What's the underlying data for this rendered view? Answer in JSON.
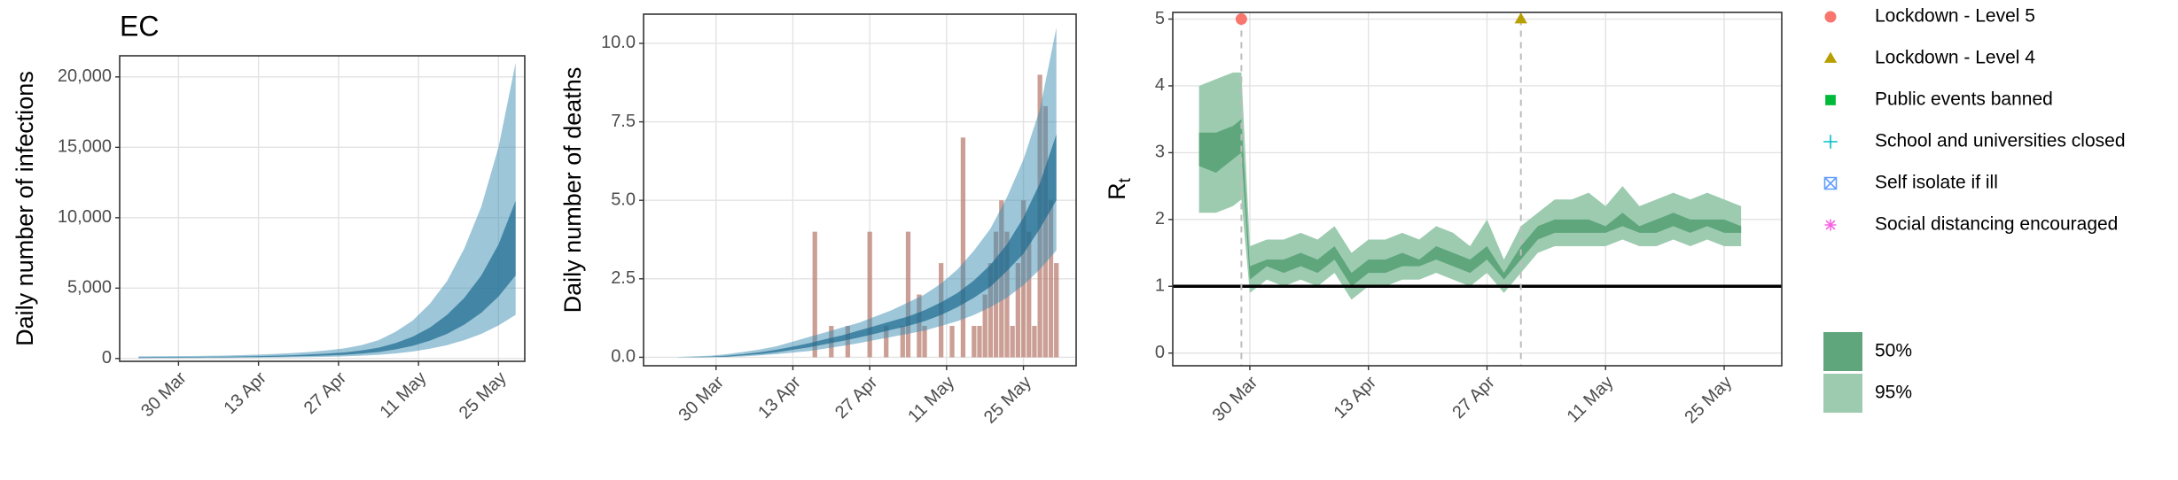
{
  "chart_data": [
    {
      "type": "area",
      "title": "EC",
      "y_label": "Daily number of infections",
      "xlim": [
        79.7,
        150.6
      ],
      "xticks": [
        {
          "value": 90,
          "label": "30 Mar"
        },
        {
          "value": 104,
          "label": "13 Apr"
        },
        {
          "value": 118,
          "label": "27 Apr"
        },
        {
          "value": 132,
          "label": "11 May"
        },
        {
          "value": 146,
          "label": "25 May"
        }
      ],
      "ylim": [
        -200,
        21500
      ],
      "yticks": [
        0,
        {
          "value": 5000,
          "label": "5,000"
        },
        {
          "value": 10000,
          "label": "10,000"
        },
        {
          "value": 15000,
          "label": "15,000"
        },
        {
          "value": 20000,
          "label": "20,000"
        }
      ],
      "grid": true,
      "x": [
        83,
        86,
        89,
        92,
        95,
        98,
        101,
        104,
        107,
        110,
        113,
        116,
        119,
        122,
        125,
        128,
        131,
        134,
        137,
        140,
        143,
        146,
        149
      ],
      "series": [
        {
          "color": "#1d6a8e",
          "opacity": 0.7,
          "lower": [
            45,
            55,
            60,
            70,
            80,
            85,
            95,
            110,
            125,
            150,
            180,
            215,
            260,
            350,
            460,
            650,
            900,
            1270,
            1750,
            2400,
            3250,
            4400,
            5900
          ],
          "upper": [
            80,
            90,
            100,
            110,
            120,
            130,
            145,
            170,
            200,
            235,
            285,
            350,
            430,
            570,
            770,
            1100,
            1550,
            2200,
            3100,
            4300,
            5900,
            8100,
            11200
          ]
        },
        {
          "color": "#3b8db3",
          "opacity": 0.5,
          "lower": [
            20,
            25,
            30,
            35,
            40,
            45,
            50,
            60,
            70,
            85,
            100,
            125,
            150,
            200,
            260,
            360,
            500,
            700,
            950,
            1300,
            1750,
            2350,
            3100
          ],
          "upper": [
            150,
            160,
            170,
            180,
            190,
            210,
            240,
            280,
            330,
            390,
            470,
            580,
            720,
            950,
            1300,
            1900,
            2700,
            3900,
            5500,
            7800,
            10800,
            15000,
            21000
          ]
        }
      ]
    },
    {
      "type": "bar",
      "y_label": "Daily number of deaths",
      "xlim": [
        76.8,
        155.6
      ],
      "xticks": [
        {
          "value": 90,
          "label": "30 Mar"
        },
        {
          "value": 104,
          "label": "13 Apr"
        },
        {
          "value": 118,
          "label": "27 Apr"
        },
        {
          "value": 132,
          "label": "11 May"
        },
        {
          "value": 146,
          "label": "25 May"
        }
      ],
      "ylim": [
        -0.27,
        10.93
      ],
      "yticks": [
        {
          "value": 0,
          "label": "0.0"
        },
        2.5,
        {
          "value": 5,
          "label": "5.0"
        },
        7.5,
        {
          "value": 10,
          "label": "10.0"
        }
      ],
      "grid": true,
      "bars": {
        "color": "#b97f72",
        "opacity": 0.75,
        "x": [
          108,
          111,
          114,
          118,
          121,
          124,
          125,
          127,
          128,
          131,
          133,
          135,
          137,
          138,
          139,
          140,
          141,
          142,
          143,
          144,
          145,
          146,
          147,
          148,
          149,
          150,
          151,
          152
        ],
        "values": [
          4,
          1,
          1,
          4,
          1,
          1,
          4,
          2,
          1,
          3,
          1,
          7,
          1,
          1,
          2,
          3,
          4,
          5,
          4,
          1,
          3,
          5,
          4,
          1,
          9,
          8,
          5,
          3
        ]
      },
      "x": [
        83,
        86,
        89,
        92,
        95,
        98,
        101,
        104,
        107,
        110,
        113,
        116,
        119,
        122,
        125,
        128,
        131,
        134,
        137,
        140,
        143,
        146,
        149,
        152
      ],
      "series": [
        {
          "color": "#1d6a8e",
          "opacity": 0.7,
          "lower": [
            0,
            0,
            0.01,
            0.02,
            0.06,
            0.1,
            0.16,
            0.24,
            0.32,
            0.42,
            0.52,
            0.63,
            0.75,
            0.88,
            1.0,
            1.15,
            1.35,
            1.6,
            1.9,
            2.25,
            2.75,
            3.3,
            4.1,
            5.0
          ],
          "upper": [
            0,
            0.01,
            0.02,
            0.05,
            0.1,
            0.16,
            0.24,
            0.34,
            0.45,
            0.58,
            0.7,
            0.85,
            1.0,
            1.15,
            1.3,
            1.5,
            1.75,
            2.05,
            2.45,
            2.95,
            3.6,
            4.45,
            5.55,
            7.1
          ]
        },
        {
          "color": "#3b8db3",
          "opacity": 0.5,
          "lower": [
            0,
            0,
            0,
            0.01,
            0.03,
            0.06,
            0.1,
            0.15,
            0.2,
            0.28,
            0.36,
            0.45,
            0.55,
            0.65,
            0.75,
            0.85,
            1.0,
            1.15,
            1.35,
            1.6,
            1.9,
            2.3,
            2.8,
            3.4
          ],
          "upper": [
            0.01,
            0.03,
            0.05,
            0.1,
            0.17,
            0.25,
            0.35,
            0.5,
            0.65,
            0.8,
            0.95,
            1.1,
            1.3,
            1.5,
            1.75,
            2.0,
            2.35,
            2.8,
            3.4,
            4.1,
            5.1,
            6.3,
            7.9,
            10.5
          ]
        }
      ]
    },
    {
      "type": "area",
      "y_label": "R",
      "y_label_sub": "t",
      "xlim": [
        80.9,
        152.8
      ],
      "xticks": [
        {
          "value": 90,
          "label": "30 Mar"
        },
        {
          "value": 104,
          "label": "13 Apr"
        },
        {
          "value": 118,
          "label": "27 Apr"
        },
        {
          "value": 132,
          "label": "11 May"
        },
        {
          "value": 146,
          "label": "25 May"
        }
      ],
      "ylim": [
        -0.19,
        5.1
      ],
      "yticks": [
        0,
        1,
        2,
        3,
        4,
        5
      ],
      "grid": true,
      "hline": 1,
      "x": [
        84,
        86,
        88,
        89,
        90,
        92,
        94,
        96,
        98,
        100,
        102,
        104,
        106,
        108,
        110,
        112,
        114,
        116,
        118,
        120,
        122,
        124,
        126,
        128,
        130,
        132,
        134,
        136,
        138,
        140,
        142,
        144,
        146,
        148
      ],
      "series": [
        {
          "name": "50%",
          "color": "#5fa67c",
          "opacity": 1,
          "lower": [
            2.8,
            2.7,
            2.9,
            3.0,
            1.1,
            1.3,
            1.2,
            1.3,
            1.2,
            1.4,
            1.0,
            1.2,
            1.2,
            1.3,
            1.3,
            1.4,
            1.3,
            1.2,
            1.4,
            1.1,
            1.4,
            1.7,
            1.8,
            1.8,
            1.8,
            1.8,
            1.9,
            1.8,
            1.8,
            1.9,
            1.8,
            1.9,
            1.8,
            1.8
          ],
          "upper": [
            3.3,
            3.3,
            3.4,
            3.5,
            1.3,
            1.4,
            1.4,
            1.5,
            1.4,
            1.6,
            1.2,
            1.4,
            1.4,
            1.5,
            1.4,
            1.6,
            1.5,
            1.4,
            1.6,
            1.2,
            1.6,
            1.9,
            2.0,
            2.0,
            2.0,
            1.9,
            2.1,
            1.9,
            2.0,
            2.1,
            2.0,
            2.0,
            2.0,
            1.9
          ]
        },
        {
          "name": "95%",
          "color": "#9ccbb0",
          "opacity": 1,
          "lower": [
            2.1,
            2.1,
            2.2,
            2.3,
            0.9,
            1.1,
            1.0,
            1.1,
            1.0,
            1.2,
            0.8,
            1.0,
            1.0,
            1.1,
            1.1,
            1.2,
            1.1,
            1.0,
            1.2,
            0.9,
            1.2,
            1.5,
            1.6,
            1.6,
            1.6,
            1.6,
            1.7,
            1.6,
            1.6,
            1.7,
            1.6,
            1.7,
            1.6,
            1.6
          ],
          "upper": [
            4.0,
            4.1,
            4.2,
            4.2,
            1.6,
            1.7,
            1.7,
            1.8,
            1.7,
            1.9,
            1.5,
            1.7,
            1.7,
            1.8,
            1.7,
            1.9,
            1.8,
            1.6,
            2.0,
            1.4,
            1.9,
            2.1,
            2.3,
            2.3,
            2.4,
            2.2,
            2.5,
            2.2,
            2.3,
            2.4,
            2.3,
            2.4,
            2.3,
            2.2
          ]
        }
      ],
      "events": [
        {
          "name": "Lockdown - Level 5",
          "shape": "circle",
          "color": "#f8766d",
          "x": 89,
          "y": 5
        },
        {
          "name": "Lockdown - Level 4",
          "shape": "triangle",
          "color": "#b79f00",
          "x": 122,
          "y": 5
        },
        {
          "name": "Public events banned",
          "shape": "square",
          "color": "#00ba38"
        },
        {
          "name": "School and universities closed",
          "shape": "plus",
          "color": "#00bfc4"
        },
        {
          "name": "Self isolate if ill",
          "shape": "boxx",
          "color": "#619cff"
        },
        {
          "name": "Social distancing encouraged",
          "shape": "asterisk",
          "color": "#f564e3"
        }
      ]
    }
  ]
}
